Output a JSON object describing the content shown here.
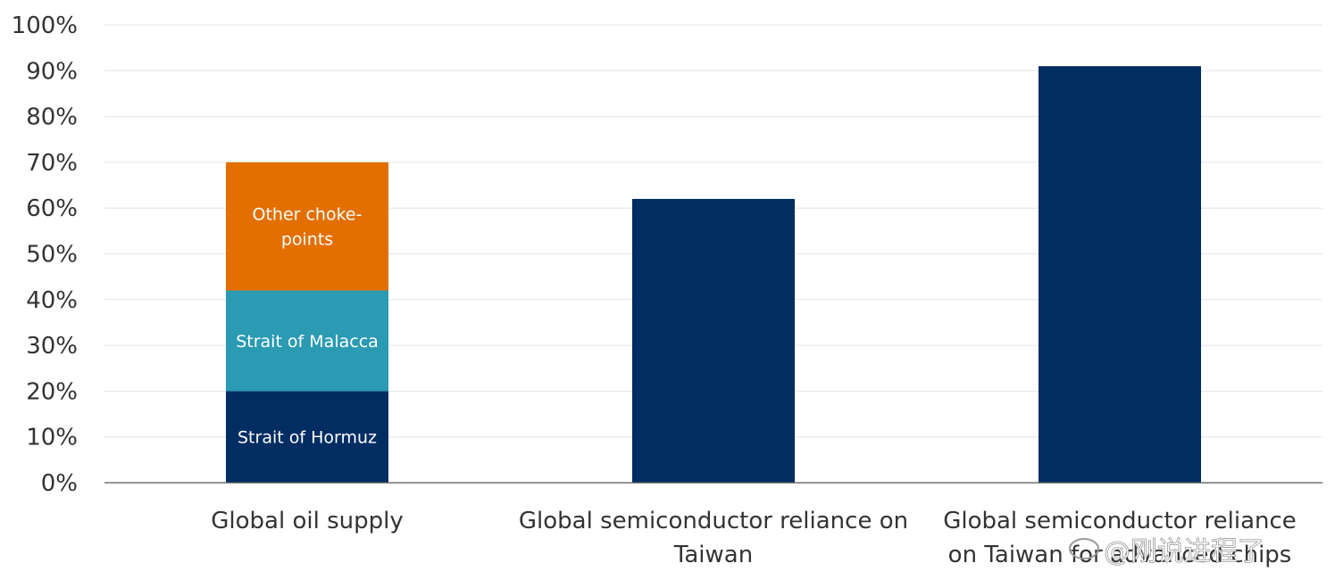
{
  "chart_data": {
    "type": "bar",
    "stacked": true,
    "categories": [
      [
        "Global oil supply"
      ],
      [
        "Global semiconductor reliance on",
        "Taiwan"
      ],
      [
        "Global semiconductor reliance",
        "on Taiwan for advanced chips"
      ]
    ],
    "series": [
      {
        "name": "Strait of Hormuz",
        "label_lines": [
          "Strait of Hormuz"
        ],
        "color": "#002d62",
        "values": [
          20,
          62,
          91
        ]
      },
      {
        "name": "Strait of Malacca",
        "label_lines": [
          "Strait of Malacca"
        ],
        "color": "#2b9ab3",
        "values": [
          22,
          0,
          0
        ]
      },
      {
        "name": "Other choke-points",
        "label_lines": [
          "Other choke-",
          "points"
        ],
        "color": "#e36f00",
        "values": [
          28,
          0,
          0
        ]
      }
    ],
    "segment_labels_visible_for": [
      0
    ],
    "ylim": [
      0,
      100
    ],
    "yticks": [
      "0%",
      "10%",
      "20%",
      "30%",
      "40%",
      "50%",
      "60%",
      "70%",
      "80%",
      "90%",
      "100%"
    ],
    "grid": true,
    "legend": "none (labels inside bars)"
  },
  "watermark": {
    "text": "@刚说进程了",
    "icon": "weibo-logo-icon"
  }
}
